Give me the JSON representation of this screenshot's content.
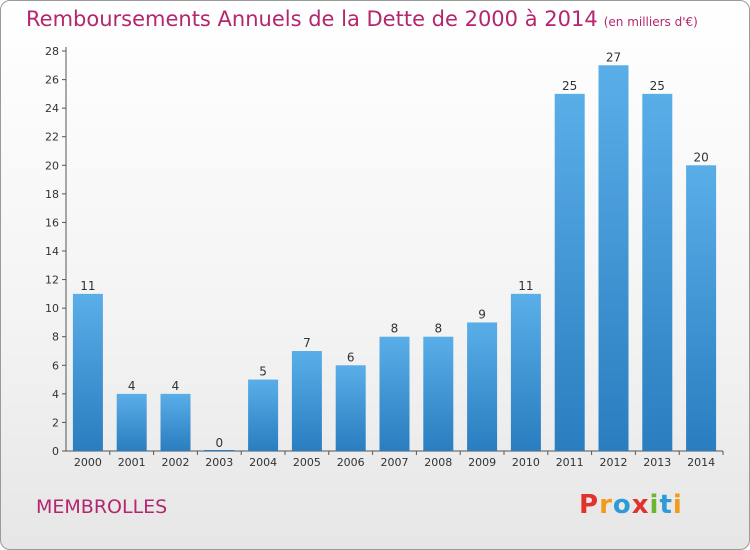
{
  "header": {
    "title": "Remboursements Annuels de la Dette de 2000 à 2014",
    "unit": "(en milliers d'€)"
  },
  "footer": {
    "city": "MEMBROLLES",
    "logo_letters": [
      "P",
      "r",
      "o",
      "x",
      "i",
      "t",
      "i"
    ],
    "logo_colors": [
      "#e2322c",
      "#f39a1c",
      "#2e9ad8",
      "#e2322c",
      "#6bb531",
      "#2e9ad8",
      "#f39a1c"
    ]
  },
  "colors": {
    "bar_top": "#5aaee8",
    "bar_bottom": "#2a7dbf",
    "title": "#b4266d"
  },
  "chart_data": {
    "type": "bar",
    "categories": [
      "2000",
      "2001",
      "2002",
      "2003",
      "2004",
      "2005",
      "2006",
      "2007",
      "2008",
      "2009",
      "2010",
      "2011",
      "2012",
      "2013",
      "2014"
    ],
    "values": [
      11,
      4,
      4,
      0,
      5,
      7,
      6,
      8,
      8,
      9,
      11,
      25,
      27,
      25,
      20
    ],
    "title": "Remboursements Annuels de la Dette de 2000 à 2014",
    "ylim": [
      0,
      28
    ],
    "yticks": [
      0,
      2,
      4,
      6,
      8,
      10,
      12,
      14,
      16,
      18,
      20,
      22,
      24,
      26,
      28
    ],
    "grid": false,
    "data_labels": true
  }
}
